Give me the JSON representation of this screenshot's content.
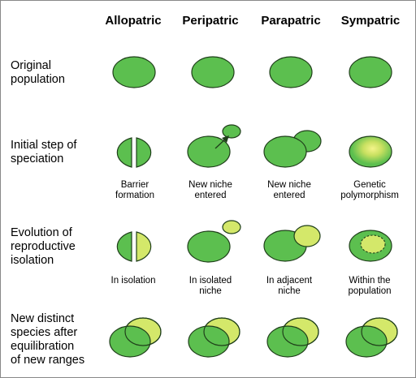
{
  "columns": {
    "allopatric": "Allopatric",
    "peripatric": "Peripatric",
    "parapatric": "Parapatric",
    "sympatric": "Sympatric"
  },
  "rows": {
    "original": "Original\npopulation",
    "initial": "Initial step of\nspeciation",
    "evolution": "Evolution of\nreproductive\nisolation",
    "distinct": "New distinct\nspecies after\nequilibration\nof new ranges"
  },
  "captions": {
    "initial": {
      "allopatric": "Barrier\nformation",
      "peripatric": "New niche\nentered",
      "parapatric": "New niche\nentered",
      "sympatric": "Genetic\npolymorphism"
    },
    "evolution": {
      "allopatric": "In isolation",
      "peripatric": "In isolated\nniche",
      "parapatric": "In adjacent\nniche",
      "sympatric": "Within the\npopulation"
    }
  },
  "colors": {
    "green": "#5cbf4f",
    "yellow_green": "#d4e86a",
    "outline": "#1f3f1a",
    "highlight": "#f0f07a"
  }
}
